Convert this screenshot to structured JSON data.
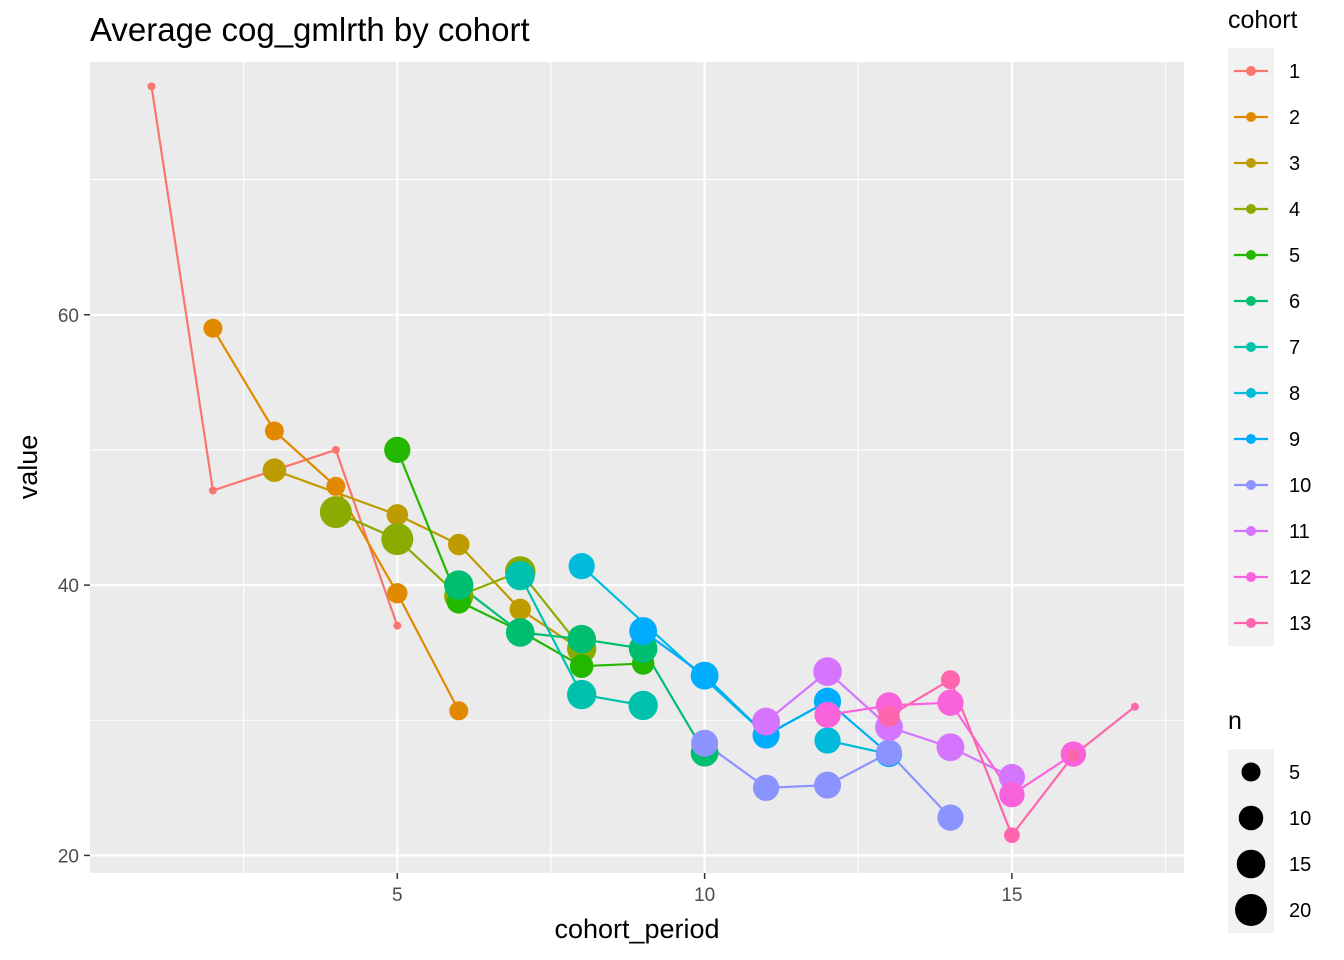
{
  "chart_data": {
    "type": "line",
    "title": "Average cog_gmlrth by cohort",
    "xlabel": "cohort_period",
    "ylabel": "value",
    "xlim": [
      0.0,
      17.8
    ],
    "ylim": [
      18.7,
      78.7
    ],
    "x_ticks": [
      5,
      10,
      15
    ],
    "y_ticks": [
      20,
      40,
      60
    ],
    "grid": true,
    "legend_position": "right",
    "color_legend_title": "cohort",
    "size_legend_title": "n",
    "size_legend": [
      5,
      10,
      15,
      20
    ],
    "series": [
      {
        "name": "1",
        "color": "#F8766D",
        "x": [
          1,
          2,
          4,
          5
        ],
        "y": [
          76.9,
          47.0,
          50.0,
          37.0
        ],
        "n": [
          1,
          1,
          1,
          1
        ]
      },
      {
        "name": "2",
        "color": "#E18A00",
        "x": [
          2,
          3,
          4,
          5,
          6
        ],
        "y": [
          59.0,
          51.4,
          47.3,
          39.4,
          30.7
        ],
        "n": [
          5,
          5,
          5,
          6,
          5
        ]
      },
      {
        "name": "3",
        "color": "#BE9C00",
        "x": [
          3,
          5,
          6,
          7,
          8
        ],
        "y": [
          48.5,
          45.2,
          43.0,
          38.2,
          35.2
        ],
        "n": [
          9,
          7,
          7,
          7,
          8
        ]
      },
      {
        "name": "4",
        "color": "#8CAB00",
        "x": [
          4,
          5,
          6,
          7,
          8
        ],
        "y": [
          45.4,
          43.4,
          39.2,
          41.0,
          35.3
        ],
        "n": [
          20,
          20,
          16,
          18,
          16
        ]
      },
      {
        "name": "5",
        "color": "#24B700",
        "x": [
          5,
          6,
          7,
          8,
          9
        ],
        "y": [
          50.0,
          38.8,
          36.6,
          34.0,
          34.2
        ],
        "n": [
          12,
          10,
          10,
          9,
          8
        ]
      },
      {
        "name": "6",
        "color": "#00BE70",
        "x": [
          6,
          7,
          8,
          9,
          10
        ],
        "y": [
          40.0,
          36.5,
          36.0,
          35.3,
          27.6
        ],
        "n": [
          16,
          15,
          15,
          15,
          14
        ]
      },
      {
        "name": "7",
        "color": "#00C1AB",
        "x": [
          7,
          8,
          9
        ],
        "y": [
          40.7,
          31.9,
          31.1
        ],
        "n": [
          16,
          16,
          16
        ]
      },
      {
        "name": "8",
        "color": "#00BBDA",
        "x": [
          8,
          11,
          12,
          12,
          13
        ],
        "y": [
          41.4,
          28.9,
          31.4,
          28.5,
          27.5
        ],
        "n": [
          12,
          12,
          13,
          12,
          11
        ]
      },
      {
        "name": "9",
        "color": "#00ACFC",
        "x": [
          9,
          10,
          11,
          12,
          13
        ],
        "y": [
          36.6,
          33.3,
          28.9,
          31.4,
          27.5
        ],
        "n": [
          14,
          14,
          13,
          13,
          12
        ]
      },
      {
        "name": "10",
        "color": "#8B93FF",
        "x": [
          10,
          11,
          12,
          13,
          14
        ],
        "y": [
          28.3,
          25.0,
          25.2,
          27.6,
          22.8
        ],
        "n": [
          13,
          12,
          13,
          12,
          12
        ]
      },
      {
        "name": "11",
        "color": "#D575FE",
        "x": [
          11,
          12,
          13,
          14,
          15
        ],
        "y": [
          29.9,
          33.6,
          29.5,
          28.0,
          25.8
        ],
        "n": [
          14,
          15,
          14,
          14,
          12
        ]
      },
      {
        "name": "12",
        "color": "#F962DD",
        "x": [
          12,
          13,
          14,
          15,
          16
        ],
        "y": [
          30.4,
          31.1,
          31.3,
          24.5,
          27.5
        ],
        "n": [
          12,
          12,
          12,
          11,
          11
        ]
      },
      {
        "name": "13",
        "color": "#FF65AC",
        "x": [
          13,
          14,
          15,
          16,
          17
        ],
        "y": [
          30.3,
          33.0,
          21.5,
          27.4,
          31.0
        ],
        "n": [
          7,
          5,
          3,
          2,
          1
        ]
      }
    ]
  }
}
